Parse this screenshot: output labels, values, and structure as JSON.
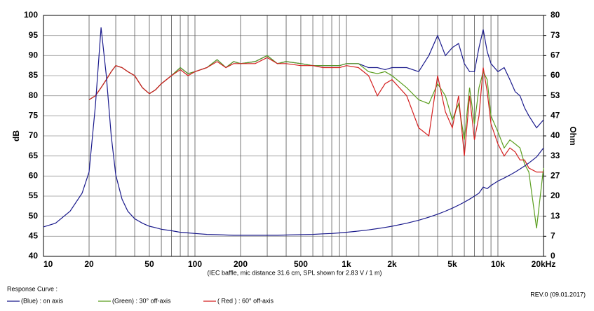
{
  "chart_data": {
    "type": "line",
    "title": "Response Curve :",
    "note": "(IEC baffle, mic distance 31.6 cm, SPL shown for 2.83 V / 1 m)",
    "revision": "REV.0 (09.01.2017)",
    "ylabel": "dB",
    "y2label": "Ohm",
    "xscale": "log",
    "grid": true,
    "xlim": [
      10,
      20000
    ],
    "ylim": [
      40,
      100
    ],
    "y2lim": [
      0,
      80
    ],
    "xticks": [
      10,
      20,
      50,
      100,
      200,
      500,
      {
        "value": 1000,
        "label": "1k"
      },
      {
        "value": 2000,
        "label": "2k"
      },
      {
        "value": 5000,
        "label": "5k"
      },
      {
        "value": 10000,
        "label": "10k"
      },
      {
        "value": 20000,
        "label": "20kHz"
      }
    ],
    "xminor": [
      30,
      40,
      60,
      70,
      80,
      90,
      300,
      400,
      600,
      700,
      800,
      900,
      3000,
      4000,
      6000,
      7000,
      8000,
      9000
    ],
    "yticks": [
      40,
      45,
      50,
      55,
      60,
      65,
      70,
      75,
      80,
      85,
      90,
      95,
      100
    ],
    "y2ticks": [
      0,
      {
        "value": 6.667,
        "label": "7"
      },
      {
        "value": 13.333,
        "label": "13"
      },
      20,
      {
        "value": 26.667,
        "label": "27"
      },
      {
        "value": 33.333,
        "label": "33"
      },
      40,
      {
        "value": 46.667,
        "label": "47"
      },
      {
        "value": 53.333,
        "label": "53"
      },
      60,
      {
        "value": 66.667,
        "label": "67"
      },
      {
        "value": 73.333,
        "label": "73"
      },
      80
    ],
    "x": [
      10,
      12,
      15,
      18,
      20,
      22,
      24,
      26,
      28,
      30,
      33,
      36,
      40,
      45,
      50,
      55,
      60,
      70,
      80,
      90,
      100,
      120,
      140,
      160,
      180,
      200,
      250,
      300,
      350,
      400,
      500,
      600,
      700,
      800,
      900,
      1000,
      1200,
      1400,
      1600,
      1800,
      2000,
      2500,
      3000,
      3500,
      4000,
      4500,
      5000,
      5500,
      6000,
      6500,
      7000,
      7500,
      8000,
      8500,
      9000,
      10000,
      11000,
      12000,
      13000,
      14000,
      15000,
      16000,
      18000,
      20000
    ],
    "series": [
      {
        "name": "(Blue) : on axis",
        "color": "#1a1a8c",
        "values": [
          null,
          null,
          null,
          null,
          79,
          80,
          82,
          84,
          86,
          87.5,
          87,
          86,
          85,
          82,
          80.5,
          81.5,
          83,
          85,
          87,
          85.5,
          86,
          87,
          89,
          87,
          88.5,
          88,
          88.5,
          90,
          88,
          88.5,
          88,
          87.5,
          87.5,
          87.5,
          87.5,
          88,
          88,
          87,
          87,
          86.5,
          87,
          87,
          86,
          90,
          95,
          90,
          92,
          93,
          88,
          86,
          86,
          92,
          96.5,
          91,
          88,
          86,
          87,
          84,
          81,
          80,
          77,
          75,
          72,
          74
        ]
      },
      {
        "name": "(Green) : 30° off-axis",
        "color": "#5a9e1e",
        "values": [
          null,
          null,
          null,
          null,
          79,
          80,
          82,
          84,
          86,
          87.5,
          87,
          86,
          85,
          82,
          80.5,
          81.5,
          83,
          85,
          87,
          85.5,
          86,
          87,
          89,
          87,
          88.5,
          88,
          88.5,
          90,
          88,
          88.5,
          88,
          87.5,
          87.5,
          87.5,
          87.5,
          88,
          88,
          86,
          85.5,
          86,
          85,
          82,
          79,
          78,
          83,
          80,
          74,
          78,
          69,
          82,
          73,
          82,
          86,
          84,
          75,
          71,
          67,
          69,
          68,
          67,
          63,
          61,
          47,
          62
        ]
      },
      {
        "name": "( Red ) : 60° off-axis",
        "color": "#d42020",
        "values": [
          null,
          null,
          null,
          null,
          79,
          80,
          82,
          84,
          86,
          87.5,
          87,
          86,
          85,
          82,
          80.5,
          81.5,
          83,
          85,
          86.5,
          85,
          86,
          87,
          88.5,
          87,
          88,
          88,
          88,
          89.5,
          88,
          88,
          87.5,
          87.5,
          87,
          87,
          87,
          87.5,
          87,
          85,
          80,
          83,
          84,
          80,
          72,
          70,
          85,
          76,
          72,
          80,
          65,
          80,
          69,
          75,
          87,
          81,
          73,
          68,
          65,
          67,
          66,
          64,
          64,
          62,
          61,
          61
        ]
      },
      {
        "color": "#1a1a8c",
        "axis": "y2",
        "values": [
          9.8,
          11,
          15,
          21,
          28,
          50,
          76,
          60,
          40,
          27,
          19,
          15,
          12.5,
          11,
          10,
          9.5,
          9,
          8.5,
          8,
          7.8,
          7.6,
          7.3,
          7.2,
          7.1,
          7,
          7,
          7,
          7,
          7,
          7.1,
          7.2,
          7.3,
          7.5,
          7.6,
          7.8,
          8,
          8.4,
          8.8,
          9.2,
          9.6,
          10,
          11,
          12,
          13,
          14,
          15,
          16,
          17,
          18,
          19,
          20,
          21,
          23,
          22.5,
          23.5,
          25,
          26,
          27,
          28,
          29,
          30,
          31,
          33,
          36
        ]
      }
    ]
  }
}
